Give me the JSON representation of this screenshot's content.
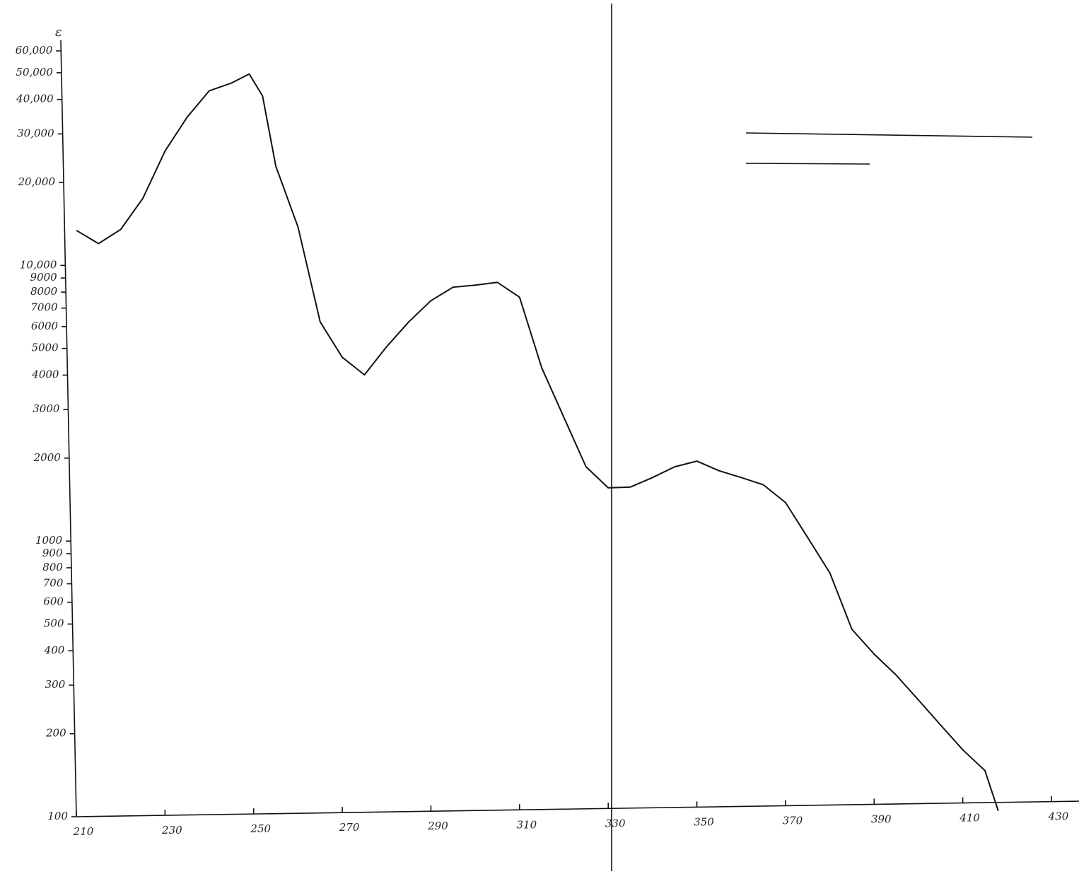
{
  "chart_data": {
    "type": "line",
    "y_label": "ε",
    "log_y": true,
    "color": "#111111",
    "x": [
      210,
      215,
      220,
      225,
      230,
      235,
      240,
      245,
      249,
      252,
      255,
      260,
      265,
      270,
      275,
      280,
      285,
      290,
      295,
      300,
      305,
      310,
      315,
      320,
      325,
      330,
      335,
      340,
      345,
      350,
      355,
      360,
      365,
      370,
      375,
      380,
      385,
      390,
      395,
      400,
      405,
      410,
      415,
      418
    ],
    "series": [
      {
        "values": [
          13400,
          12000,
          13500,
          17500,
          26000,
          34500,
          43000,
          45900,
          49500,
          41200,
          22900,
          13800,
          6240,
          4640,
          4010,
          5070,
          6240,
          7450,
          8340,
          8480,
          8680,
          7670,
          4250,
          2810,
          1860,
          1560,
          1570,
          1700,
          1860,
          1950,
          1800,
          1700,
          1600,
          1380,
          1030,
          767,
          478,
          389,
          326,
          265,
          215,
          175,
          147,
          105
        ]
      }
    ],
    "xlim": [
      210,
      430
    ],
    "xticks": [
      210,
      230,
      250,
      270,
      290,
      310,
      330,
      350,
      370,
      390,
      410,
      430
    ],
    "ylim": [
      100,
      60000
    ],
    "yticks": [
      100,
      200,
      300,
      400,
      500,
      600,
      700,
      800,
      900,
      1000,
      2000,
      3000,
      4000,
      5000,
      6000,
      7000,
      8000,
      9000,
      {
        "value": 10000,
        "label": "10,000"
      },
      {
        "value": 20000,
        "label": "20,000"
      },
      {
        "value": 30000,
        "label": "30,000"
      },
      {
        "value": 40000,
        "label": "40,000"
      },
      {
        "value": 50000,
        "label": "50,000"
      },
      {
        "value": 60000,
        "label": "60,000"
      }
    ]
  }
}
